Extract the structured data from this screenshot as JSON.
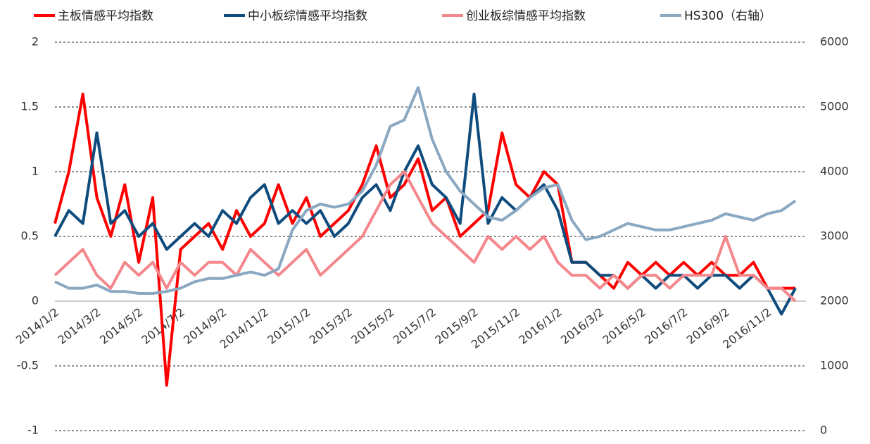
{
  "chart_data": {
    "type": "line",
    "categories": [
      "2014/1/2",
      null,
      null,
      "2014/3/2",
      null,
      null,
      "2014/5/2",
      null,
      null,
      "2014/7/2",
      null,
      null,
      "2014/9/2",
      null,
      null,
      "2014/11/2",
      null,
      null,
      "2015/1/2",
      null,
      null,
      "2015/3/2",
      null,
      null,
      "2015/5/2",
      null,
      null,
      "2015/7/2",
      null,
      null,
      "2015/9/2",
      null,
      null,
      "2015/11/2",
      null,
      null,
      "2016/1/2",
      null,
      null,
      "2016/3/2",
      null,
      null,
      "2016/5/2",
      null,
      null,
      "2016/7/2",
      null,
      null,
      "2016/9/2",
      null,
      null,
      "2016/11/2",
      null,
      null
    ],
    "series": [
      {
        "name": "主板情感平均指数",
        "color": "#ff0000",
        "values": [
          0.6,
          1.0,
          1.6,
          0.8,
          0.5,
          0.9,
          0.3,
          0.8,
          -0.65,
          0.4,
          0.5,
          0.6,
          0.4,
          0.7,
          0.5,
          0.6,
          0.9,
          0.6,
          0.8,
          0.5,
          0.6,
          0.7,
          0.9,
          1.2,
          0.8,
          0.9,
          1.1,
          0.7,
          0.8,
          0.5,
          0.6,
          0.7,
          1.3,
          0.9,
          0.8,
          1.0,
          0.9,
          0.3,
          0.3,
          0.2,
          0.1,
          0.3,
          0.2,
          0.3,
          0.2,
          0.3,
          0.2,
          0.3,
          0.2,
          0.2,
          0.3,
          0.1,
          0.1,
          0.1
        ]
      },
      {
        "name": "中小板综情感平均指数",
        "color": "#0f4c7d",
        "values": [
          0.5,
          0.7,
          0.6,
          1.3,
          0.6,
          0.7,
          0.5,
          0.6,
          0.4,
          0.5,
          0.6,
          0.5,
          0.7,
          0.6,
          0.8,
          0.9,
          0.6,
          0.7,
          0.6,
          0.7,
          0.5,
          0.6,
          0.8,
          0.9,
          0.7,
          1.0,
          1.2,
          0.9,
          0.8,
          0.6,
          1.6,
          0.6,
          0.8,
          0.7,
          0.8,
          0.9,
          0.7,
          0.3,
          0.3,
          0.2,
          0.2,
          0.1,
          0.2,
          0.1,
          0.2,
          0.2,
          0.1,
          0.2,
          0.2,
          0.1,
          0.2,
          0.1,
          -0.1,
          0.1
        ]
      },
      {
        "name": "创业板综情感平均指数",
        "color": "#f4878b",
        "values": [
          0.2,
          0.3,
          0.4,
          0.2,
          0.1,
          0.3,
          0.2,
          0.3,
          0.1,
          0.3,
          0.2,
          0.3,
          0.3,
          0.2,
          0.4,
          0.3,
          0.2,
          0.3,
          0.4,
          0.2,
          0.3,
          0.4,
          0.5,
          0.7,
          0.9,
          1.0,
          0.8,
          0.6,
          0.5,
          0.4,
          0.3,
          0.5,
          0.4,
          0.5,
          0.4,
          0.5,
          0.3,
          0.2,
          0.2,
          0.1,
          0.2,
          0.1,
          0.2,
          0.2,
          0.1,
          0.2,
          0.2,
          0.2,
          0.5,
          0.2,
          0.2,
          0.1,
          0.1,
          0.0
        ]
      },
      {
        "name": "HS300（右轴）",
        "color": "#8aa8c2",
        "axis": "y2",
        "values": [
          2300,
          2200,
          2200,
          2250,
          2150,
          2150,
          2120,
          2120,
          2150,
          2200,
          2300,
          2350,
          2350,
          2400,
          2450,
          2400,
          2500,
          3100,
          3400,
          3500,
          3450,
          3500,
          3700,
          4100,
          4700,
          4800,
          5300,
          4500,
          4000,
          3700,
          3500,
          3300,
          3250,
          3400,
          3600,
          3750,
          3800,
          3250,
          2950,
          3000,
          3100,
          3200,
          3150,
          3100,
          3100,
          3150,
          3200,
          3250,
          3350,
          3300,
          3250,
          3350,
          3400,
          3550
        ]
      }
    ],
    "ylim": [
      -1,
      2
    ],
    "yticks": [
      -1,
      -0.5,
      0,
      0.5,
      1,
      1.5,
      2
    ],
    "y2lim": [
      0,
      6000
    ],
    "y2ticks": [
      0,
      1000,
      2000,
      3000,
      4000,
      5000,
      6000
    ],
    "grid": true,
    "legend": "top"
  }
}
